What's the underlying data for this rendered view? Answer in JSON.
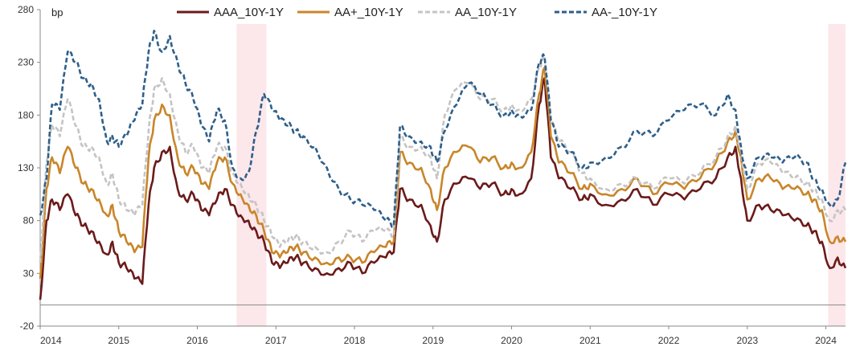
{
  "chart_data": {
    "type": "line",
    "unit_label": "bp",
    "ylim": [
      -20,
      280
    ],
    "y_ticks": [
      "280",
      "230",
      "180",
      "130",
      "80",
      "30",
      "-20"
    ],
    "x_ticks": [
      "2014",
      "2015",
      "2016",
      "2017",
      "2018",
      "2019",
      "2020",
      "2021",
      "2022",
      "2023",
      "2024"
    ],
    "grid": false,
    "legend_position": "top",
    "shaded_periods": [
      {
        "start": 2016.5,
        "end": 2016.88
      },
      {
        "start": 2024.03,
        "end": 2024.25
      }
    ],
    "series": [
      {
        "name": "AAA_10Y-1Y",
        "color": "#6b1a1a",
        "dash": "solid",
        "x": [
          2014.0,
          2014.08,
          2014.15,
          2014.25,
          2014.35,
          2014.45,
          2014.55,
          2014.65,
          2014.75,
          2014.85,
          2014.92,
          2015.0,
          2015.1,
          2015.2,
          2015.3,
          2015.38,
          2015.45,
          2015.55,
          2015.65,
          2015.75,
          2015.85,
          2015.95,
          2016.05,
          2016.15,
          2016.25,
          2016.35,
          2016.45,
          2016.55,
          2016.65,
          2016.75,
          2016.85,
          2016.95,
          2017.05,
          2017.15,
          2017.25,
          2017.35,
          2017.5,
          2017.65,
          2017.8,
          2017.95,
          2018.1,
          2018.25,
          2018.4,
          2018.5,
          2018.58,
          2018.7,
          2018.85,
          2018.97,
          2019.05,
          2019.15,
          2019.3,
          2019.45,
          2019.6,
          2019.75,
          2019.9,
          2020.0,
          2020.1,
          2020.25,
          2020.35,
          2020.42,
          2020.5,
          2020.6,
          2020.75,
          2020.9,
          2021.0,
          2021.2,
          2021.4,
          2021.6,
          2021.8,
          2022.0,
          2022.2,
          2022.4,
          2022.6,
          2022.75,
          2022.85,
          2022.92,
          2023.0,
          2023.15,
          2023.3,
          2023.45,
          2023.6,
          2023.75,
          2023.85,
          2023.95,
          2024.05,
          2024.15,
          2024.25
        ],
        "y": [
          5,
          80,
          100,
          90,
          105,
          85,
          75,
          70,
          60,
          48,
          60,
          40,
          35,
          25,
          20,
          95,
          130,
          145,
          150,
          110,
          100,
          105,
          90,
          85,
          100,
          110,
          95,
          85,
          80,
          70,
          60,
          40,
          35,
          40,
          45,
          40,
          35,
          30,
          35,
          40,
          30,
          40,
          45,
          50,
          110,
          100,
          95,
          75,
          60,
          100,
          115,
          120,
          110,
          115,
          105,
          110,
          105,
          120,
          190,
          215,
          140,
          120,
          110,
          100,
          105,
          95,
          100,
          110,
          95,
          105,
          100,
          110,
          120,
          140,
          150,
          120,
          80,
          95,
          90,
          85,
          80,
          75,
          70,
          60,
          35,
          45,
          35
        ]
      },
      {
        "name": "AA+_10Y-1Y",
        "color": "#c8862a",
        "dash": "solid",
        "x": [
          2014.0,
          2014.08,
          2014.15,
          2014.25,
          2014.35,
          2014.45,
          2014.55,
          2014.65,
          2014.75,
          2014.85,
          2014.92,
          2015.0,
          2015.1,
          2015.2,
          2015.3,
          2015.38,
          2015.45,
          2015.55,
          2015.65,
          2015.75,
          2015.85,
          2015.95,
          2016.05,
          2016.15,
          2016.25,
          2016.35,
          2016.45,
          2016.55,
          2016.65,
          2016.75,
          2016.85,
          2016.95,
          2017.05,
          2017.15,
          2017.25,
          2017.35,
          2017.5,
          2017.65,
          2017.8,
          2017.95,
          2018.1,
          2018.25,
          2018.4,
          2018.5,
          2018.58,
          2018.7,
          2018.85,
          2018.97,
          2019.05,
          2019.15,
          2019.3,
          2019.45,
          2019.6,
          2019.75,
          2019.9,
          2020.0,
          2020.1,
          2020.25,
          2020.35,
          2020.42,
          2020.5,
          2020.6,
          2020.75,
          2020.9,
          2021.0,
          2021.2,
          2021.4,
          2021.6,
          2021.8,
          2022.0,
          2022.2,
          2022.4,
          2022.6,
          2022.75,
          2022.85,
          2022.92,
          2023.0,
          2023.15,
          2023.3,
          2023.45,
          2023.6,
          2023.75,
          2023.85,
          2023.95,
          2024.05,
          2024.15,
          2024.25
        ],
        "y": [
          25,
          110,
          140,
          125,
          150,
          130,
          115,
          110,
          100,
          85,
          95,
          70,
          60,
          50,
          55,
          140,
          175,
          190,
          180,
          140,
          125,
          130,
          115,
          110,
          135,
          140,
          115,
          105,
          95,
          85,
          70,
          50,
          45,
          50,
          55,
          50,
          45,
          40,
          45,
          45,
          40,
          50,
          55,
          60,
          145,
          135,
          130,
          110,
          90,
          130,
          145,
          150,
          135,
          140,
          130,
          135,
          130,
          145,
          200,
          225,
          160,
          135,
          125,
          110,
          115,
          105,
          110,
          120,
          105,
          115,
          110,
          120,
          135,
          155,
          165,
          140,
          100,
          120,
          120,
          110,
          110,
          105,
          100,
          90,
          60,
          65,
          60
        ]
      },
      {
        "name": "AA_10Y-1Y",
        "color": "#c4c4c4",
        "dash": "dashed",
        "x": [
          2014.0,
          2014.08,
          2014.15,
          2014.25,
          2014.35,
          2014.45,
          2014.55,
          2014.65,
          2014.75,
          2014.85,
          2014.92,
          2015.0,
          2015.1,
          2015.2,
          2015.3,
          2015.38,
          2015.45,
          2015.55,
          2015.65,
          2015.75,
          2015.85,
          2015.95,
          2016.05,
          2016.15,
          2016.25,
          2016.35,
          2016.45,
          2016.55,
          2016.65,
          2016.75,
          2016.85,
          2016.95,
          2017.05,
          2017.15,
          2017.25,
          2017.35,
          2017.5,
          2017.65,
          2017.8,
          2017.95,
          2018.1,
          2018.25,
          2018.4,
          2018.5,
          2018.58,
          2018.7,
          2018.85,
          2018.97,
          2019.05,
          2019.15,
          2019.3,
          2019.45,
          2019.6,
          2019.75,
          2019.9,
          2020.0,
          2020.1,
          2020.25,
          2020.35,
          2020.42,
          2020.5,
          2020.6,
          2020.75,
          2020.9,
          2021.0,
          2021.2,
          2021.4,
          2021.6,
          2021.8,
          2022.0,
          2022.2,
          2022.4,
          2022.6,
          2022.75,
          2022.85,
          2022.92,
          2023.0,
          2023.15,
          2023.3,
          2023.45,
          2023.6,
          2023.75,
          2023.85,
          2023.95,
          2024.05,
          2024.15,
          2024.25
        ],
        "y": [
          40,
          135,
          170,
          160,
          195,
          170,
          150,
          150,
          140,
          115,
          125,
          100,
          90,
          85,
          95,
          165,
          205,
          215,
          200,
          165,
          145,
          150,
          130,
          125,
          150,
          150,
          125,
          115,
          105,
          95,
          80,
          65,
          55,
          60,
          65,
          60,
          55,
          50,
          60,
          70,
          60,
          70,
          70,
          65,
          160,
          150,
          150,
          140,
          120,
          180,
          205,
          210,
          195,
          195,
          185,
          190,
          185,
          195,
          225,
          235,
          175,
          155,
          145,
          125,
          120,
          110,
          115,
          120,
          110,
          120,
          115,
          125,
          140,
          160,
          170,
          145,
          110,
          135,
          135,
          125,
          120,
          115,
          110,
          100,
          80,
          90,
          90
        ]
      },
      {
        "name": "AA-_10Y-1Y",
        "color": "#2e5f8a",
        "dash": "dashed",
        "x": [
          2014.0,
          2014.08,
          2014.15,
          2014.25,
          2014.35,
          2014.45,
          2014.55,
          2014.65,
          2014.75,
          2014.85,
          2014.92,
          2015.0,
          2015.1,
          2015.2,
          2015.3,
          2015.38,
          2015.45,
          2015.55,
          2015.65,
          2015.75,
          2015.85,
          2015.95,
          2016.05,
          2016.15,
          2016.25,
          2016.35,
          2016.45,
          2016.55,
          2016.65,
          2016.75,
          2016.85,
          2016.95,
          2017.05,
          2017.15,
          2017.25,
          2017.35,
          2017.5,
          2017.65,
          2017.8,
          2017.95,
          2018.1,
          2018.25,
          2018.4,
          2018.5,
          2018.58,
          2018.7,
          2018.85,
          2018.97,
          2019.05,
          2019.15,
          2019.3,
          2019.45,
          2019.6,
          2019.75,
          2019.9,
          2020.0,
          2020.1,
          2020.25,
          2020.35,
          2020.42,
          2020.5,
          2020.6,
          2020.75,
          2020.9,
          2021.0,
          2021.2,
          2021.4,
          2021.6,
          2021.8,
          2022.0,
          2022.2,
          2022.4,
          2022.6,
          2022.75,
          2022.85,
          2022.92,
          2023.0,
          2023.15,
          2023.3,
          2023.45,
          2023.6,
          2023.75,
          2023.85,
          2023.95,
          2024.05,
          2024.15,
          2024.25
        ],
        "y": [
          85,
          120,
          190,
          185,
          240,
          230,
          215,
          210,
          195,
          155,
          160,
          150,
          160,
          175,
          190,
          240,
          260,
          240,
          255,
          230,
          210,
          195,
          170,
          155,
          185,
          175,
          130,
          120,
          125,
          165,
          200,
          185,
          175,
          170,
          165,
          160,
          150,
          130,
          110,
          100,
          95,
          90,
          80,
          75,
          170,
          160,
          155,
          150,
          135,
          165,
          190,
          210,
          200,
          190,
          180,
          185,
          180,
          185,
          230,
          235,
          175,
          150,
          145,
          130,
          135,
          140,
          150,
          165,
          160,
          175,
          185,
          190,
          180,
          200,
          185,
          150,
          120,
          140,
          140,
          135,
          140,
          135,
          120,
          110,
          95,
          100,
          135
        ]
      }
    ]
  }
}
